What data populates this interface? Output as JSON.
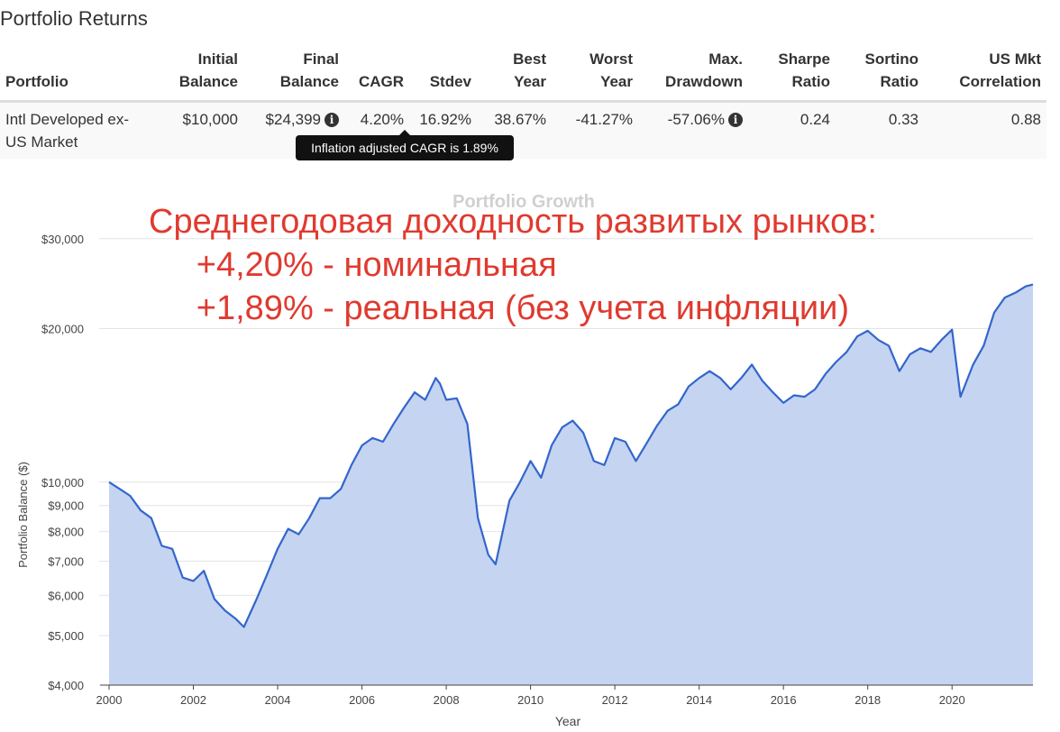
{
  "page": {
    "section_title": "Portfolio Returns"
  },
  "table": {
    "headers": [
      [
        "Portfolio"
      ],
      [
        "Initial",
        "Balance"
      ],
      [
        "Final",
        "Balance"
      ],
      [
        "CAGR"
      ],
      [
        "Stdev"
      ],
      [
        "Best",
        "Year"
      ],
      [
        "Worst",
        "Year"
      ],
      [
        "Max.",
        "Drawdown"
      ],
      [
        "Sharpe",
        "Ratio"
      ],
      [
        "Sortino",
        "Ratio"
      ],
      [
        "US Mkt",
        "Correlation"
      ]
    ],
    "row": {
      "portfolio": "Intl Developed ex-US Market",
      "initial_balance": "$10,000",
      "final_balance": "$24,399",
      "cagr": "4.20%",
      "stdev": "16.92%",
      "best_year": "38.67%",
      "worst_year": "-41.27%",
      "max_drawdown": "-57.06%",
      "sharpe_ratio": "0.24",
      "sortino_ratio": "0.33",
      "us_mkt_correlation": "0.88"
    },
    "info_icon": "info-icon",
    "tooltip": "Inflation adjusted CAGR is 1.89%"
  },
  "annotation": {
    "lines": [
      "Среднегодовая доходность развитых рынков:",
      "     +4,20% - номинальная",
      "     +1,89% - реальная (без учета инфляции)"
    ],
    "color": "#e03a2f"
  },
  "chart_data": {
    "type": "area",
    "title": "Portfolio Growth",
    "xlabel": "Year",
    "ylabel": "Portfolio Balance ($)",
    "y_scale": "log",
    "ylim": [
      4000,
      36000
    ],
    "xlim": [
      2000,
      2021.92
    ],
    "y_ticks": [
      4000,
      5000,
      6000,
      7000,
      8000,
      9000,
      10000,
      20000,
      30000
    ],
    "y_tick_labels": [
      "$4,000",
      "$5,000",
      "$6,000",
      "$7,000",
      "$8,000",
      "$9,000",
      "$10,000",
      "$20,000",
      "$30,000"
    ],
    "x_ticks": [
      2000,
      2002,
      2004,
      2006,
      2008,
      2010,
      2012,
      2014,
      2016,
      2018,
      2020
    ],
    "grid": true,
    "line_color": "#3366cc",
    "fill_color": "#c5d4f0",
    "series": [
      {
        "x": [
          2000.0,
          2000.25,
          2000.5,
          2000.75,
          2001.0,
          2001.25,
          2001.5,
          2001.75,
          2002.0,
          2002.25,
          2002.5,
          2002.75,
          2003.0,
          2003.2,
          2003.5,
          2003.75,
          2004.0,
          2004.25,
          2004.5,
          2004.75,
          2005.0,
          2005.25,
          2005.5,
          2005.75,
          2006.0,
          2006.25,
          2006.5,
          2006.75,
          2007.0,
          2007.25,
          2007.5,
          2007.75,
          2007.85,
          2008.0,
          2008.25,
          2008.5,
          2008.75,
          2009.0,
          2009.17,
          2009.5,
          2009.75,
          2010.0,
          2010.25,
          2010.5,
          2010.75,
          2011.0,
          2011.25,
          2011.5,
          2011.75,
          2012.0,
          2012.25,
          2012.5,
          2012.75,
          2013.0,
          2013.25,
          2013.5,
          2013.75,
          2014.0,
          2014.25,
          2014.5,
          2014.75,
          2015.0,
          2015.25,
          2015.5,
          2015.75,
          2016.0,
          2016.25,
          2016.5,
          2016.75,
          2017.0,
          2017.25,
          2017.5,
          2017.75,
          2018.0,
          2018.25,
          2018.5,
          2018.75,
          2019.0,
          2019.25,
          2019.5,
          2019.75,
          2020.0,
          2020.2,
          2020.5,
          2020.75,
          2021.0,
          2021.25,
          2021.5,
          2021.75,
          2021.92
        ],
        "values": [
          10000,
          9700,
          9400,
          8800,
          8500,
          7500,
          7400,
          6500,
          6400,
          6700,
          5900,
          5600,
          5400,
          5200,
          5900,
          6600,
          7400,
          8100,
          7900,
          8500,
          9300,
          9300,
          9700,
          10800,
          11800,
          12200,
          12000,
          13000,
          14000,
          15000,
          14500,
          16000,
          15600,
          14500,
          14600,
          13000,
          8500,
          7200,
          6900,
          9200,
          10000,
          11000,
          10200,
          11800,
          12800,
          13200,
          12500,
          11000,
          10800,
          12200,
          12000,
          11000,
          11900,
          12900,
          13800,
          14200,
          15400,
          16000,
          16500,
          16000,
          15200,
          16000,
          17000,
          15800,
          15000,
          14300,
          14800,
          14700,
          15200,
          16300,
          17200,
          18000,
          19300,
          19800,
          19000,
          18500,
          16500,
          17800,
          18300,
          18000,
          19000,
          19900,
          14700,
          17000,
          18500,
          21500,
          23000,
          23500,
          24200,
          24399
        ]
      }
    ]
  }
}
